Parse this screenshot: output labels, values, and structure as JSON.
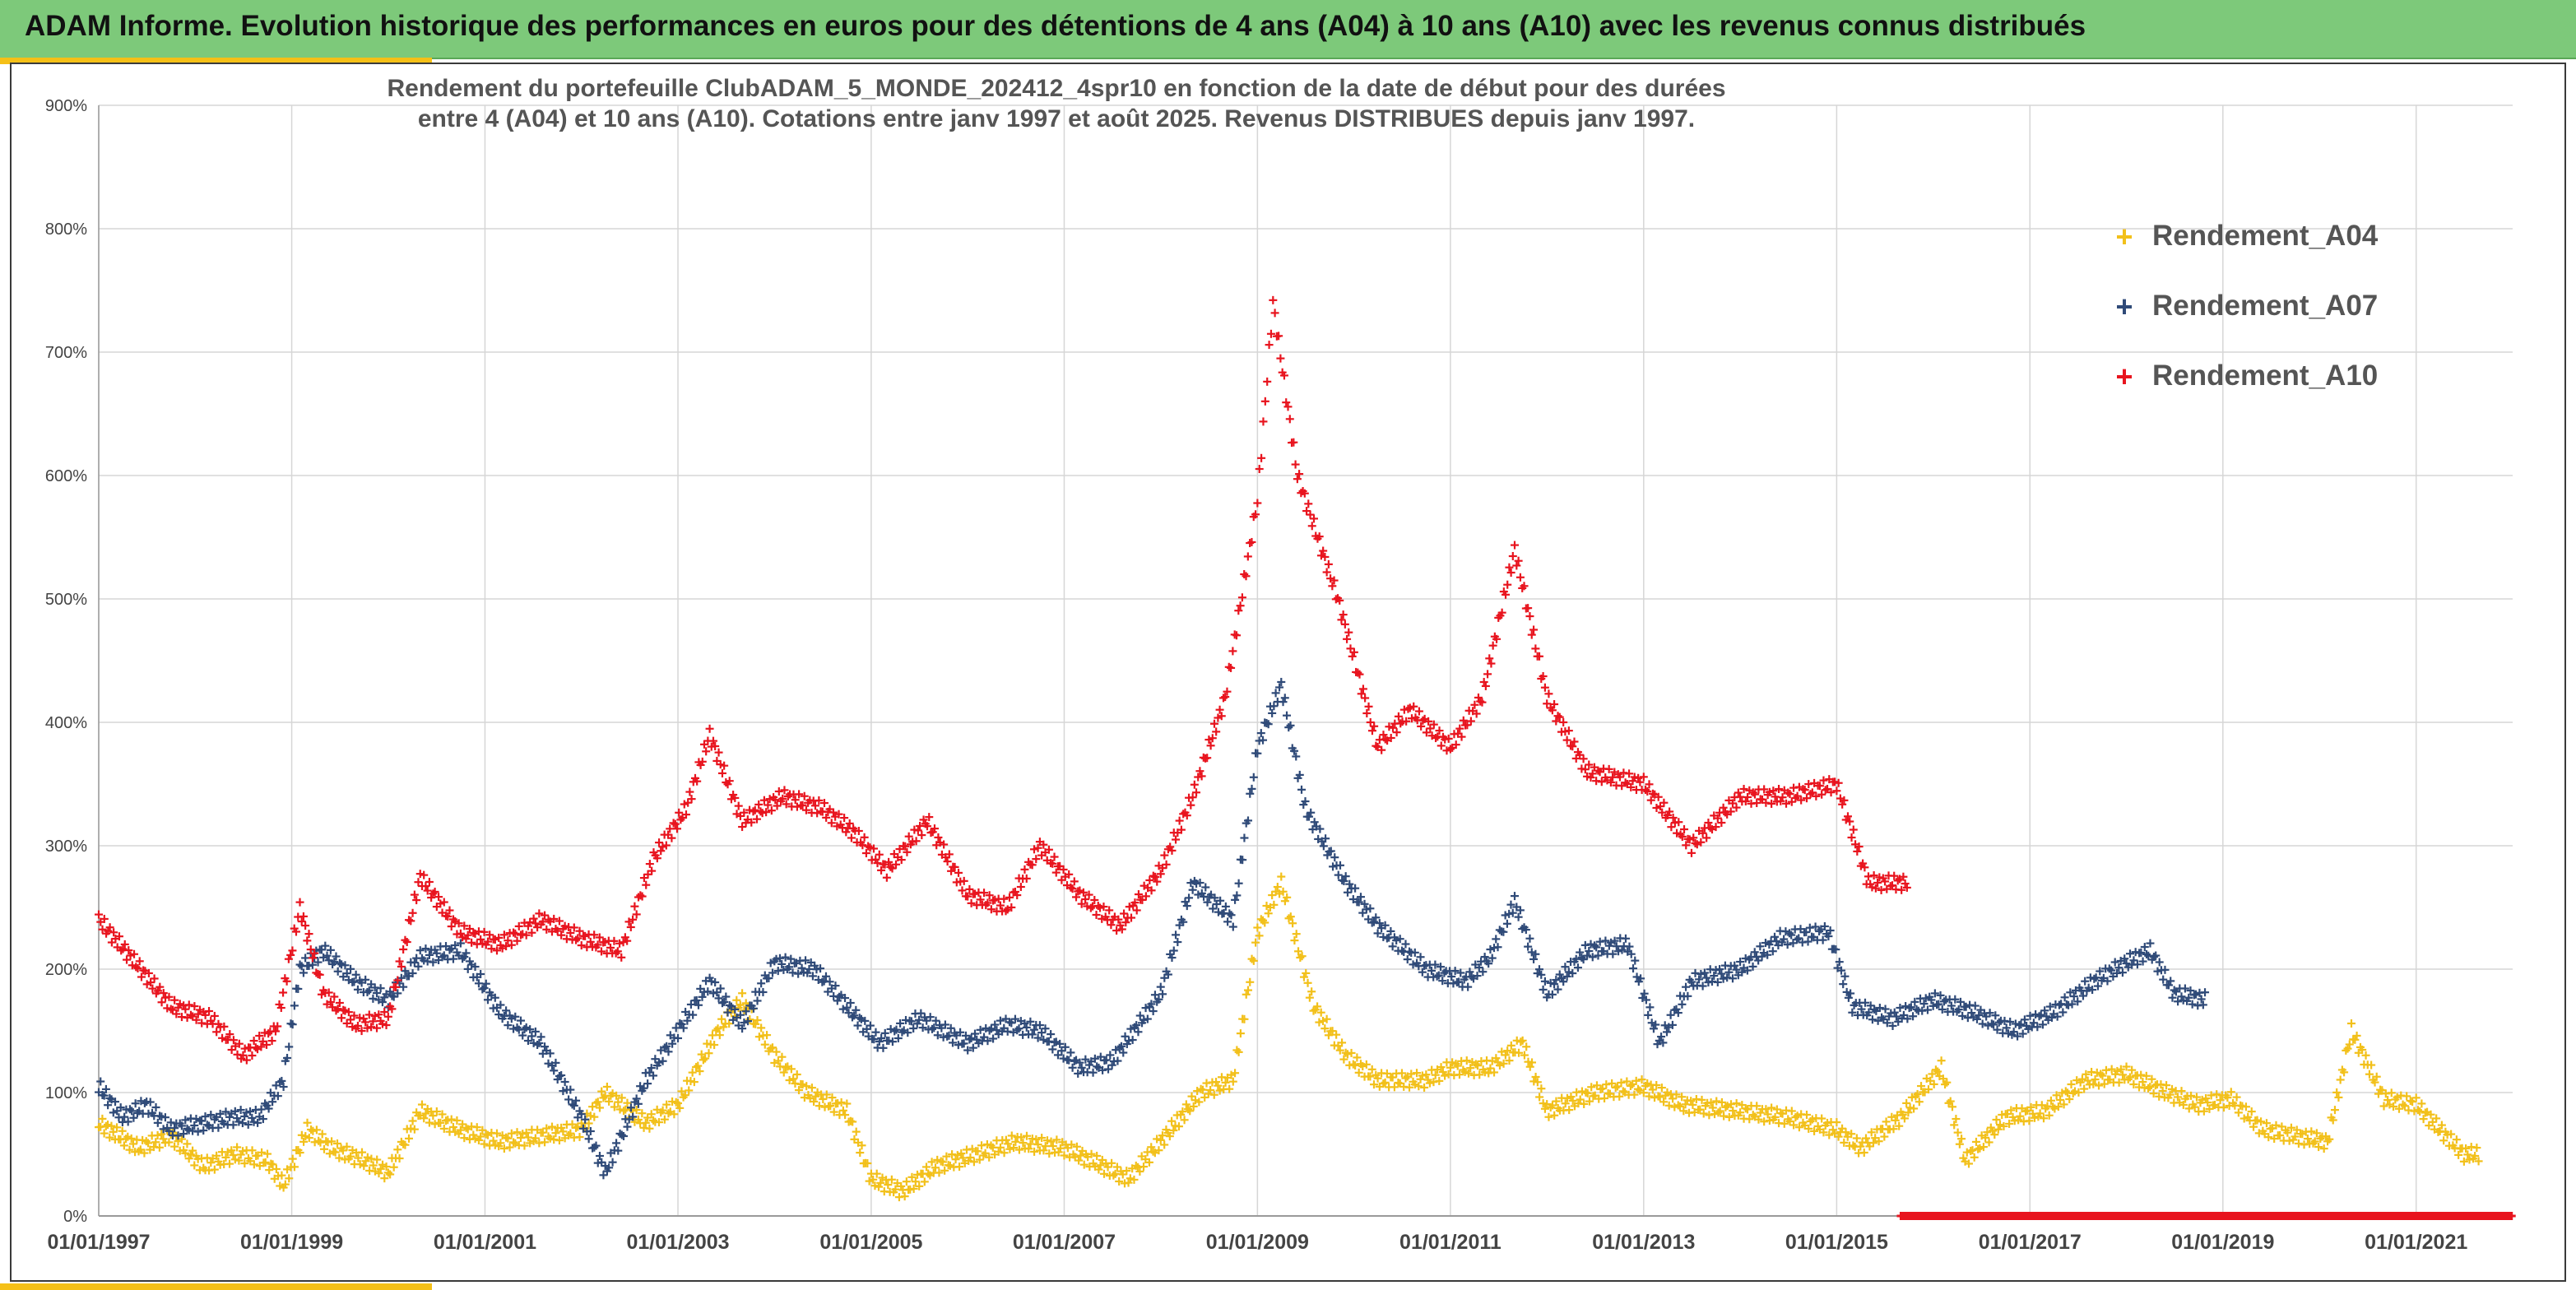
{
  "header": {
    "title": "ADAM Informe. Evolution historique des performances en euros pour des détentions de 4 ans (A04) à 10 ans (A10) avec les revenus connus distribués"
  },
  "colors": {
    "header_bg": "#7dc97a",
    "accent": "#f5c017",
    "A04": "#f2c01a",
    "A07": "#2f4a78",
    "A10": "#e8141e"
  },
  "chart_data": {
    "type": "scatter",
    "title_lines": [
      "Rendement du portefeuille ClubADAM_5_MONDE_202412_4spr10  en fonction de la date de début pour des durées",
      "entre 4 (A04) et 10 ans (A10). Cotations entre janv 1997 et août 2025. Revenus DISTRIBUES depuis janv 1997."
    ],
    "x_range": [
      "1997-01-01",
      "2022-01-01"
    ],
    "x_ticks": [
      "01/01/1997",
      "01/01/1999",
      "01/01/2001",
      "01/01/2003",
      "01/01/2005",
      "01/01/2007",
      "01/01/2009",
      "01/01/2011",
      "01/01/2013",
      "01/01/2015",
      "01/01/2017",
      "01/01/2019",
      "01/01/2021"
    ],
    "y_range": [
      0,
      900
    ],
    "y_ticks": [
      "0%",
      "100%",
      "200%",
      "300%",
      "400%",
      "500%",
      "600%",
      "700%",
      "800%",
      "900%"
    ],
    "grid": true,
    "legend_position": "top-right",
    "series": [
      {
        "name": "Rendement_A04",
        "color": "#f2c01a",
        "points": [
          [
            "1997-01-01",
            75
          ],
          [
            "1997-06-01",
            55
          ],
          [
            "1997-10-01",
            65
          ],
          [
            "1998-02-01",
            40
          ],
          [
            "1998-06-01",
            50
          ],
          [
            "1998-10-01",
            45
          ],
          [
            "1998-12-01",
            25
          ],
          [
            "1999-03-01",
            70
          ],
          [
            "1999-06-01",
            55
          ],
          [
            "1999-10-01",
            45
          ],
          [
            "2000-01-01",
            35
          ],
          [
            "2000-05-01",
            85
          ],
          [
            "2000-10-01",
            70
          ],
          [
            "2001-03-01",
            60
          ],
          [
            "2001-08-01",
            65
          ],
          [
            "2002-01-01",
            70
          ],
          [
            "2002-04-01",
            100
          ],
          [
            "2002-09-01",
            75
          ],
          [
            "2003-01-01",
            90
          ],
          [
            "2003-06-01",
            150
          ],
          [
            "2003-09-01",
            175
          ],
          [
            "2004-01-01",
            130
          ],
          [
            "2004-05-01",
            100
          ],
          [
            "2004-10-01",
            85
          ],
          [
            "2005-01-01",
            30
          ],
          [
            "2005-05-01",
            20
          ],
          [
            "2005-09-01",
            40
          ],
          [
            "2006-02-01",
            50
          ],
          [
            "2006-07-01",
            60
          ],
          [
            "2007-01-01",
            55
          ],
          [
            "2007-06-01",
            40
          ],
          [
            "2007-09-01",
            30
          ],
          [
            "2008-01-01",
            60
          ],
          [
            "2008-06-01",
            100
          ],
          [
            "2008-10-01",
            110
          ],
          [
            "2009-01-01",
            230
          ],
          [
            "2009-04-01",
            270
          ],
          [
            "2009-08-01",
            170
          ],
          [
            "2009-12-01",
            130
          ],
          [
            "2010-04-01",
            110
          ],
          [
            "2010-10-01",
            110
          ],
          [
            "2011-01-01",
            120
          ],
          [
            "2011-06-01",
            120
          ],
          [
            "2011-10-01",
            140
          ],
          [
            "2012-01-01",
            85
          ],
          [
            "2012-07-01",
            100
          ],
          [
            "2013-01-01",
            105
          ],
          [
            "2013-06-01",
            90
          ],
          [
            "2014-01-01",
            85
          ],
          [
            "2014-07-01",
            80
          ],
          [
            "2015-01-01",
            70
          ],
          [
            "2015-04-01",
            55
          ],
          [
            "2015-09-01",
            80
          ],
          [
            "2016-02-01",
            120
          ],
          [
            "2016-05-01",
            45
          ],
          [
            "2016-10-01",
            80
          ],
          [
            "2017-03-01",
            85
          ],
          [
            "2017-08-01",
            110
          ],
          [
            "2018-01-01",
            115
          ],
          [
            "2018-06-01",
            100
          ],
          [
            "2018-10-01",
            90
          ],
          [
            "2019-02-01",
            95
          ],
          [
            "2019-06-01",
            70
          ],
          [
            "2019-10-01",
            65
          ],
          [
            "2020-02-01",
            60
          ],
          [
            "2020-05-01",
            150
          ],
          [
            "2020-09-01",
            95
          ],
          [
            "2021-01-01",
            90
          ],
          [
            "2021-04-01",
            70
          ],
          [
            "2021-07-01",
            50
          ],
          [
            "2021-09-01",
            50
          ]
        ]
      },
      {
        "name": "Rendement_A07",
        "color": "#2f4a78",
        "points": [
          [
            "1997-01-01",
            105
          ],
          [
            "1997-04-01",
            80
          ],
          [
            "1997-07-01",
            90
          ],
          [
            "1997-10-01",
            70
          ],
          [
            "1998-02-01",
            75
          ],
          [
            "1998-06-01",
            80
          ],
          [
            "1998-09-01",
            80
          ],
          [
            "1998-12-01",
            110
          ],
          [
            "1999-02-01",
            200
          ],
          [
            "1999-05-01",
            215
          ],
          [
            "1999-09-01",
            190
          ],
          [
            "2000-01-01",
            175
          ],
          [
            "2000-05-01",
            210
          ],
          [
            "2000-10-01",
            215
          ],
          [
            "2001-03-01",
            165
          ],
          [
            "2001-08-01",
            140
          ],
          [
            "2002-01-01",
            80
          ],
          [
            "2002-04-01",
            35
          ],
          [
            "2002-09-01",
            110
          ],
          [
            "2003-01-01",
            150
          ],
          [
            "2003-05-01",
            190
          ],
          [
            "2003-09-01",
            155
          ],
          [
            "2004-01-01",
            205
          ],
          [
            "2004-06-01",
            200
          ],
          [
            "2004-10-01",
            170
          ],
          [
            "2005-02-01",
            140
          ],
          [
            "2005-07-01",
            160
          ],
          [
            "2006-01-01",
            140
          ],
          [
            "2006-06-01",
            155
          ],
          [
            "2006-10-01",
            150
          ],
          [
            "2007-03-01",
            120
          ],
          [
            "2007-07-01",
            125
          ],
          [
            "2008-01-01",
            180
          ],
          [
            "2008-05-01",
            270
          ],
          [
            "2008-10-01",
            240
          ],
          [
            "2009-01-01",
            380
          ],
          [
            "2009-04-01",
            430
          ],
          [
            "2009-07-01",
            330
          ],
          [
            "2009-12-01",
            270
          ],
          [
            "2010-04-01",
            235
          ],
          [
            "2010-10-01",
            200
          ],
          [
            "2011-03-01",
            190
          ],
          [
            "2011-06-01",
            210
          ],
          [
            "2011-09-01",
            255
          ],
          [
            "2012-01-01",
            180
          ],
          [
            "2012-06-01",
            215
          ],
          [
            "2012-11-01",
            220
          ],
          [
            "2013-03-01",
            140
          ],
          [
            "2013-07-01",
            190
          ],
          [
            "2014-01-01",
            200
          ],
          [
            "2014-06-01",
            225
          ],
          [
            "2014-12-01",
            230
          ],
          [
            "2015-03-01",
            170
          ],
          [
            "2015-08-01",
            160
          ],
          [
            "2016-01-01",
            175
          ],
          [
            "2016-06-01",
            165
          ],
          [
            "2016-11-01",
            150
          ],
          [
            "2017-04-01",
            165
          ],
          [
            "2017-09-01",
            190
          ],
          [
            "2018-01-01",
            205
          ],
          [
            "2018-04-01",
            215
          ],
          [
            "2018-07-01",
            180
          ],
          [
            "2018-11-01",
            175
          ]
        ]
      },
      {
        "name": "Rendement_A10",
        "color": "#e8141e",
        "points": [
          [
            "1997-01-01",
            240
          ],
          [
            "1997-05-01",
            210
          ],
          [
            "1997-10-01",
            170
          ],
          [
            "1998-03-01",
            160
          ],
          [
            "1998-07-01",
            130
          ],
          [
            "1998-11-01",
            150
          ],
          [
            "1999-02-01",
            250
          ],
          [
            "1999-05-01",
            180
          ],
          [
            "1999-09-01",
            155
          ],
          [
            "2000-01-01",
            160
          ],
          [
            "2000-05-01",
            275
          ],
          [
            "2000-10-01",
            230
          ],
          [
            "2001-03-01",
            220
          ],
          [
            "2001-08-01",
            240
          ],
          [
            "2002-01-01",
            225
          ],
          [
            "2002-06-01",
            215
          ],
          [
            "2002-10-01",
            290
          ],
          [
            "2003-02-01",
            330
          ],
          [
            "2003-05-01",
            390
          ],
          [
            "2003-09-01",
            320
          ],
          [
            "2004-02-01",
            340
          ],
          [
            "2004-07-01",
            330
          ],
          [
            "2004-11-01",
            310
          ],
          [
            "2005-03-01",
            280
          ],
          [
            "2005-08-01",
            320
          ],
          [
            "2006-01-01",
            260
          ],
          [
            "2006-06-01",
            250
          ],
          [
            "2006-10-01",
            300
          ],
          [
            "2007-03-01",
            260
          ],
          [
            "2007-08-01",
            235
          ],
          [
            "2008-01-01",
            280
          ],
          [
            "2008-05-01",
            340
          ],
          [
            "2008-09-01",
            420
          ],
          [
            "2009-01-01",
            580
          ],
          [
            "2009-03-01",
            740
          ],
          [
            "2009-06-01",
            600
          ],
          [
            "2009-11-01",
            500
          ],
          [
            "2010-04-01",
            380
          ],
          [
            "2010-08-01",
            410
          ],
          [
            "2011-01-01",
            380
          ],
          [
            "2011-05-01",
            420
          ],
          [
            "2011-09-01",
            540
          ],
          [
            "2012-01-01",
            420
          ],
          [
            "2012-06-01",
            360
          ],
          [
            "2013-01-01",
            350
          ],
          [
            "2013-07-01",
            300
          ],
          [
            "2014-01-01",
            340
          ],
          [
            "2014-07-01",
            340
          ],
          [
            "2015-01-01",
            350
          ],
          [
            "2015-05-01",
            270
          ],
          [
            "2015-10-01",
            270
          ]
        ],
        "tail": {
          "from": "2015-09-01",
          "to": "2022-01-01",
          "value": 0
        }
      }
    ]
  }
}
